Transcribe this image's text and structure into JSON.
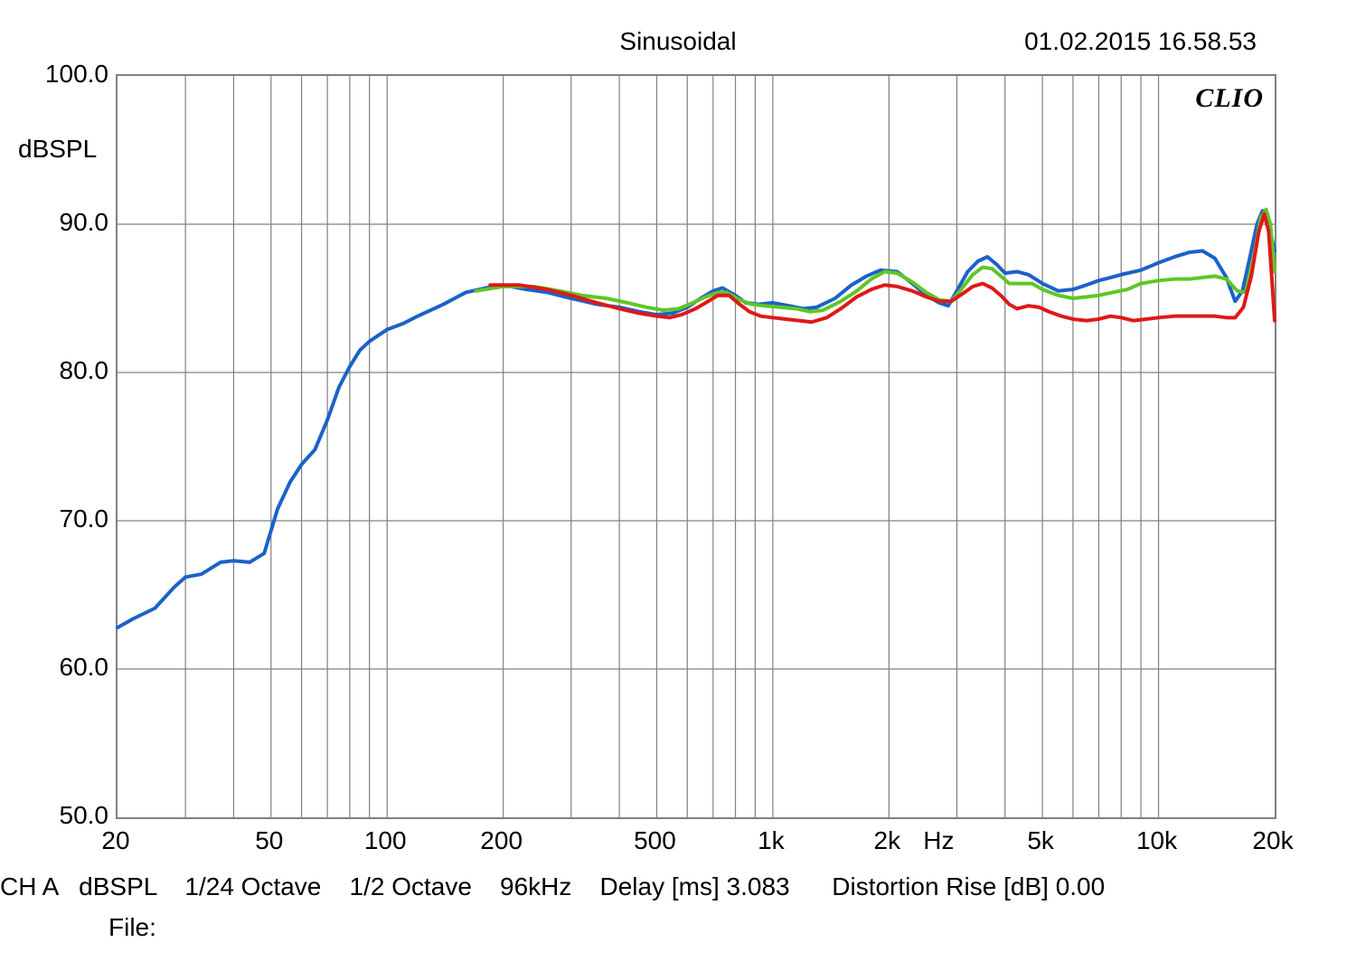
{
  "header": {
    "title": "Sinusoidal",
    "timestamp": "01.02.2015 16.58.53"
  },
  "brand": "CLIO",
  "chart": {
    "type": "line",
    "x_scale": "log",
    "y_scale": "linear",
    "xlim": [
      20,
      20000
    ],
    "ylim": [
      50,
      100
    ],
    "ytick_step": 10,
    "y_ticks": [
      50.0,
      60.0,
      70.0,
      80.0,
      90.0,
      100.0
    ],
    "y_tick_labels": [
      "50.0",
      "60.0",
      "70.0",
      "80.0",
      "90.0",
      "100.0"
    ],
    "y_axis_label_unit": "dBSPL",
    "x_ticks": [
      20,
      50,
      100,
      200,
      500,
      1000,
      2000,
      5000,
      10000,
      20000
    ],
    "x_tick_labels": [
      "20",
      "50",
      "100",
      "200",
      "500",
      "1k",
      "2k",
      "5k",
      "10k",
      "20k"
    ],
    "x_axis_label_unit": "Hz",
    "x_minor_ticks": [
      20,
      30,
      40,
      50,
      60,
      70,
      80,
      90,
      100,
      200,
      300,
      400,
      500,
      600,
      700,
      800,
      900,
      1000,
      2000,
      3000,
      4000,
      5000,
      6000,
      7000,
      8000,
      9000,
      10000,
      20000
    ],
    "grid_color": "#808080",
    "grid_stroke_width": 1.2,
    "background_color": "#ffffff",
    "line_stroke_width": 4,
    "series": [
      {
        "name": "blue",
        "color": "#1b62c9",
        "points": [
          [
            20,
            62.8
          ],
          [
            22,
            63.4
          ],
          [
            25,
            64.1
          ],
          [
            28,
            65.5
          ],
          [
            30,
            66.2
          ],
          [
            33,
            66.4
          ],
          [
            37,
            67.2
          ],
          [
            40,
            67.3
          ],
          [
            44,
            67.2
          ],
          [
            48,
            67.8
          ],
          [
            52,
            70.8
          ],
          [
            56,
            72.6
          ],
          [
            60,
            73.8
          ],
          [
            65,
            74.8
          ],
          [
            70,
            76.8
          ],
          [
            75,
            79.0
          ],
          [
            80,
            80.4
          ],
          [
            85,
            81.5
          ],
          [
            90,
            82.1
          ],
          [
            100,
            82.9
          ],
          [
            110,
            83.3
          ],
          [
            120,
            83.8
          ],
          [
            140,
            84.6
          ],
          [
            160,
            85.4
          ],
          [
            180,
            85.7
          ],
          [
            200,
            85.9
          ],
          [
            230,
            85.6
          ],
          [
            260,
            85.4
          ],
          [
            300,
            85.0
          ],
          [
            350,
            84.6
          ],
          [
            400,
            84.4
          ],
          [
            450,
            84.1
          ],
          [
            500,
            83.9
          ],
          [
            550,
            84.0
          ],
          [
            600,
            84.4
          ],
          [
            650,
            85.0
          ],
          [
            700,
            85.5
          ],
          [
            740,
            85.7
          ],
          [
            800,
            85.2
          ],
          [
            850,
            84.7
          ],
          [
            920,
            84.6
          ],
          [
            1000,
            84.7
          ],
          [
            1100,
            84.5
          ],
          [
            1200,
            84.3
          ],
          [
            1300,
            84.4
          ],
          [
            1450,
            85.0
          ],
          [
            1600,
            85.9
          ],
          [
            1750,
            86.5
          ],
          [
            1900,
            86.9
          ],
          [
            2100,
            86.8
          ],
          [
            2300,
            86.0
          ],
          [
            2500,
            85.2
          ],
          [
            2700,
            84.7
          ],
          [
            2850,
            84.5
          ],
          [
            3000,
            85.5
          ],
          [
            3200,
            86.8
          ],
          [
            3400,
            87.5
          ],
          [
            3600,
            87.8
          ],
          [
            3800,
            87.3
          ],
          [
            4000,
            86.7
          ],
          [
            4300,
            86.8
          ],
          [
            4600,
            86.6
          ],
          [
            5000,
            86.0
          ],
          [
            5500,
            85.5
          ],
          [
            6000,
            85.6
          ],
          [
            6500,
            85.9
          ],
          [
            7000,
            86.2
          ],
          [
            7500,
            86.4
          ],
          [
            8000,
            86.6
          ],
          [
            9000,
            86.9
          ],
          [
            10000,
            87.4
          ],
          [
            11000,
            87.8
          ],
          [
            12000,
            88.1
          ],
          [
            13000,
            88.2
          ],
          [
            14000,
            87.7
          ],
          [
            15000,
            86.4
          ],
          [
            15800,
            84.8
          ],
          [
            16500,
            85.5
          ],
          [
            17200,
            87.6
          ],
          [
            18000,
            90.0
          ],
          [
            18600,
            90.9
          ],
          [
            19200,
            90.2
          ],
          [
            20000,
            88.2
          ]
        ]
      },
      {
        "name": "green",
        "color": "#5fc627",
        "points": [
          [
            170,
            85.5
          ],
          [
            200,
            85.8
          ],
          [
            240,
            85.8
          ],
          [
            280,
            85.5
          ],
          [
            320,
            85.2
          ],
          [
            370,
            85.0
          ],
          [
            420,
            84.7
          ],
          [
            470,
            84.4
          ],
          [
            520,
            84.2
          ],
          [
            570,
            84.3
          ],
          [
            620,
            84.7
          ],
          [
            670,
            85.1
          ],
          [
            720,
            85.4
          ],
          [
            760,
            85.4
          ],
          [
            820,
            84.9
          ],
          [
            880,
            84.6
          ],
          [
            950,
            84.5
          ],
          [
            1050,
            84.4
          ],
          [
            1150,
            84.3
          ],
          [
            1250,
            84.1
          ],
          [
            1350,
            84.2
          ],
          [
            1500,
            84.8
          ],
          [
            1650,
            85.5
          ],
          [
            1800,
            86.3
          ],
          [
            1950,
            86.8
          ],
          [
            2100,
            86.7
          ],
          [
            2300,
            86.1
          ],
          [
            2500,
            85.4
          ],
          [
            2700,
            84.9
          ],
          [
            2900,
            84.8
          ],
          [
            3100,
            85.7
          ],
          [
            3300,
            86.6
          ],
          [
            3500,
            87.1
          ],
          [
            3700,
            87.0
          ],
          [
            3900,
            86.5
          ],
          [
            4100,
            86.0
          ],
          [
            4400,
            86.0
          ],
          [
            4700,
            86.0
          ],
          [
            5000,
            85.6
          ],
          [
            5500,
            85.2
          ],
          [
            6000,
            85.0
          ],
          [
            6500,
            85.1
          ],
          [
            7000,
            85.2
          ],
          [
            7600,
            85.4
          ],
          [
            8300,
            85.6
          ],
          [
            9000,
            86.0
          ],
          [
            10000,
            86.2
          ],
          [
            11000,
            86.3
          ],
          [
            12000,
            86.3
          ],
          [
            13000,
            86.4
          ],
          [
            14000,
            86.5
          ],
          [
            15000,
            86.3
          ],
          [
            16000,
            85.5
          ],
          [
            16800,
            85.4
          ],
          [
            17600,
            87.6
          ],
          [
            18400,
            90.4
          ],
          [
            19000,
            91.0
          ],
          [
            19500,
            90.0
          ],
          [
            20000,
            86.8
          ]
        ]
      },
      {
        "name": "red",
        "color": "#e01818",
        "points": [
          [
            185,
            85.9
          ],
          [
            220,
            85.9
          ],
          [
            260,
            85.6
          ],
          [
            300,
            85.2
          ],
          [
            350,
            84.7
          ],
          [
            400,
            84.3
          ],
          [
            450,
            84.0
          ],
          [
            500,
            83.8
          ],
          [
            540,
            83.7
          ],
          [
            580,
            83.9
          ],
          [
            630,
            84.3
          ],
          [
            680,
            84.8
          ],
          [
            720,
            85.2
          ],
          [
            770,
            85.2
          ],
          [
            820,
            84.6
          ],
          [
            870,
            84.1
          ],
          [
            930,
            83.8
          ],
          [
            1000,
            83.7
          ],
          [
            1080,
            83.6
          ],
          [
            1170,
            83.5
          ],
          [
            1260,
            83.4
          ],
          [
            1380,
            83.7
          ],
          [
            1500,
            84.3
          ],
          [
            1650,
            85.1
          ],
          [
            1800,
            85.6
          ],
          [
            1950,
            85.9
          ],
          [
            2100,
            85.8
          ],
          [
            2300,
            85.5
          ],
          [
            2500,
            85.1
          ],
          [
            2700,
            84.8
          ],
          [
            2900,
            84.8
          ],
          [
            3100,
            85.3
          ],
          [
            3300,
            85.8
          ],
          [
            3500,
            86.0
          ],
          [
            3700,
            85.7
          ],
          [
            3900,
            85.2
          ],
          [
            4100,
            84.6
          ],
          [
            4300,
            84.3
          ],
          [
            4600,
            84.5
          ],
          [
            4900,
            84.4
          ],
          [
            5200,
            84.1
          ],
          [
            5600,
            83.8
          ],
          [
            6000,
            83.6
          ],
          [
            6500,
            83.5
          ],
          [
            7000,
            83.6
          ],
          [
            7500,
            83.8
          ],
          [
            8000,
            83.7
          ],
          [
            8600,
            83.5
          ],
          [
            9300,
            83.6
          ],
          [
            10000,
            83.7
          ],
          [
            11000,
            83.8
          ],
          [
            12000,
            83.8
          ],
          [
            13000,
            83.8
          ],
          [
            14000,
            83.8
          ],
          [
            15000,
            83.7
          ],
          [
            15800,
            83.7
          ],
          [
            16600,
            84.4
          ],
          [
            17400,
            86.5
          ],
          [
            18200,
            89.5
          ],
          [
            18800,
            90.7
          ],
          [
            19300,
            89.5
          ],
          [
            19650,
            86.5
          ],
          [
            20000,
            83.5
          ]
        ]
      }
    ]
  },
  "footer": {
    "text": "CH A   dBSPL    1/24 Octave    1/2 Octave    96kHz    Delay [ms] 3.083      Distortion Rise [dB] 0.00",
    "file_label": "File:"
  }
}
